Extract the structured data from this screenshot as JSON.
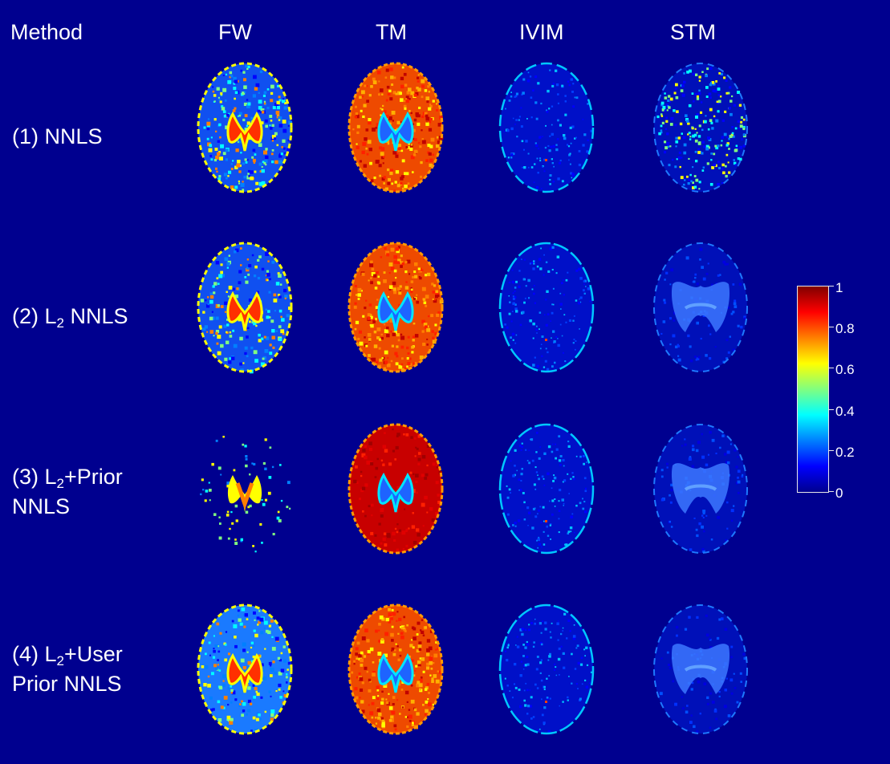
{
  "header": {
    "method": "Method",
    "columns": [
      "FW",
      "TM",
      "IVIM",
      "STM"
    ]
  },
  "rows": [
    {
      "line1_pre": "(1) NNLS",
      "line1_sub": "",
      "line1_post": "",
      "line2": ""
    },
    {
      "line1_pre": "(2) L",
      "line1_sub": "2",
      "line1_post": " NNLS",
      "line2": ""
    },
    {
      "line1_pre": "(3) L",
      "line1_sub": "2",
      "line1_post": "+Prior",
      "line2": "NNLS"
    },
    {
      "line1_pre": "(4) L",
      "line1_sub": "2",
      "line1_post": "+User",
      "line2": "Prior NNLS"
    }
  ],
  "colorbar": {
    "ticks": [
      "1",
      "0.8",
      "0.6",
      "0.4",
      "0.2",
      "0"
    ],
    "colormap": [
      "#00008f",
      "#0000ff",
      "#0080ff",
      "#00ffff",
      "#80ff80",
      "#ffff00",
      "#ff8000",
      "#ff0000",
      "#800000"
    ]
  },
  "colors": {
    "background": "#00008f",
    "text": "#ffffff"
  }
}
